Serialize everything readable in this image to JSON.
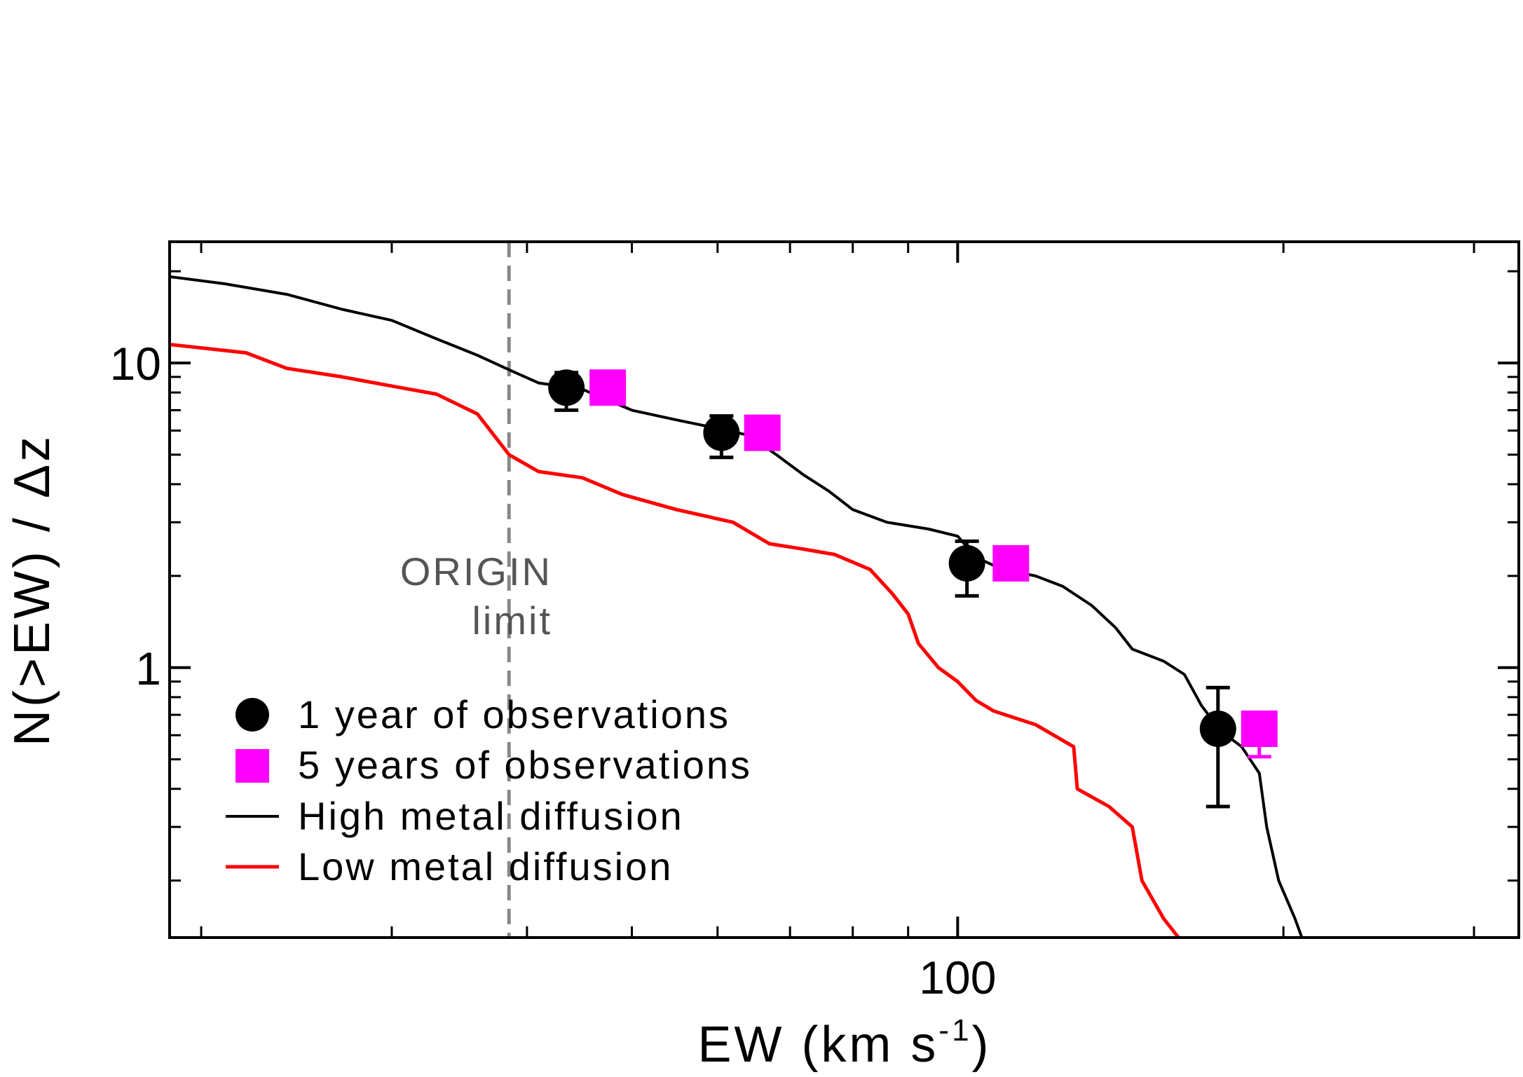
{
  "chart_data": {
    "type": "line",
    "xlabel": "EW (km s",
    "xlabel_sup": "-1",
    "xlabel_close": ")",
    "ylabel": "N(>EW) / Δz",
    "x_scale": "log",
    "y_scale": "log",
    "xlim": [
      18.7,
      330
    ],
    "ylim": [
      0.13,
      25
    ],
    "x_ticks": [
      {
        "value": 100,
        "label": "100"
      }
    ],
    "y_ticks": [
      {
        "value": 1,
        "label": "1"
      },
      {
        "value": 10,
        "label": "10"
      }
    ],
    "grid": false,
    "legend": {
      "placement": "bottom-left",
      "entries": [
        {
          "label": "1 year of observations",
          "marker": "circle",
          "color": "#000000"
        },
        {
          "label": "5 years of observations",
          "marker": "square",
          "color": "#ff00ff"
        },
        {
          "label": "High metal diffusion",
          "marker": "line",
          "color": "#000000"
        },
        {
          "label": "Low metal diffusion",
          "marker": "line",
          "color": "#ff0000"
        }
      ]
    },
    "vline": {
      "x": 38.5,
      "color": "#888888",
      "style": "dashed",
      "label_line1": "ORIGIN",
      "label_line2": "limit"
    },
    "series": [
      {
        "name": "High metal diffusion",
        "kind": "line",
        "color": "#000000",
        "points": [
          [
            18.7,
            19.2
          ],
          [
            21,
            18.2
          ],
          [
            24,
            16.8
          ],
          [
            27,
            15.0
          ],
          [
            30,
            13.8
          ],
          [
            33,
            12.0
          ],
          [
            36,
            10.6
          ],
          [
            38.5,
            9.5
          ],
          [
            41,
            8.6
          ],
          [
            45,
            8.2
          ],
          [
            50,
            7.0
          ],
          [
            55,
            6.5
          ],
          [
            60,
            6.1
          ],
          [
            64,
            5.8
          ],
          [
            68,
            5.0
          ],
          [
            72,
            4.3
          ],
          [
            76,
            3.8
          ],
          [
            80,
            3.3
          ],
          [
            86,
            3.0
          ],
          [
            94,
            2.85
          ],
          [
            100,
            2.7
          ],
          [
            104,
            2.3
          ],
          [
            110,
            2.1
          ],
          [
            118,
            2.0
          ],
          [
            125,
            1.85
          ],
          [
            133,
            1.6
          ],
          [
            140,
            1.35
          ],
          [
            145,
            1.15
          ],
          [
            155,
            1.05
          ],
          [
            162,
            0.95
          ],
          [
            168,
            0.75
          ],
          [
            175,
            0.62
          ],
          [
            183,
            0.55
          ],
          [
            190,
            0.45
          ],
          [
            193,
            0.3
          ],
          [
            198,
            0.2
          ],
          [
            205,
            0.15
          ],
          [
            208,
            0.13
          ]
        ]
      },
      {
        "name": "Low metal diffusion",
        "kind": "line",
        "color": "#ff0000",
        "points": [
          [
            18.7,
            11.5
          ],
          [
            22,
            10.8
          ],
          [
            24,
            9.6
          ],
          [
            27,
            9.0
          ],
          [
            30,
            8.4
          ],
          [
            33,
            7.9
          ],
          [
            36,
            6.8
          ],
          [
            38.5,
            5.0
          ],
          [
            41,
            4.4
          ],
          [
            45,
            4.2
          ],
          [
            49,
            3.7
          ],
          [
            55,
            3.3
          ],
          [
            62,
            3.0
          ],
          [
            67,
            2.55
          ],
          [
            72,
            2.45
          ],
          [
            77,
            2.35
          ],
          [
            83,
            2.1
          ],
          [
            87,
            1.75
          ],
          [
            90,
            1.5
          ],
          [
            92,
            1.2
          ],
          [
            96,
            1.0
          ],
          [
            100,
            0.9
          ],
          [
            104,
            0.78
          ],
          [
            108,
            0.72
          ],
          [
            118,
            0.65
          ],
          [
            128,
            0.55
          ],
          [
            129,
            0.4
          ],
          [
            138,
            0.35
          ],
          [
            145,
            0.3
          ],
          [
            148,
            0.2
          ],
          [
            155,
            0.15
          ],
          [
            160,
            0.13
          ]
        ]
      },
      {
        "name": "1 year of observations",
        "kind": "points",
        "marker": "circle",
        "color": "#000000",
        "points": [
          {
            "x": 43.5,
            "y": 8.3,
            "err_low": 1.3,
            "err_high": 1.0
          },
          {
            "x": 60.5,
            "y": 5.9,
            "err_low": 1.0,
            "err_high": 0.8
          },
          {
            "x": 102,
            "y": 2.2,
            "err_low": 0.48,
            "err_high": 0.4
          },
          {
            "x": 174,
            "y": 0.63,
            "err_low": 0.28,
            "err_high": 0.23
          }
        ]
      },
      {
        "name": "5 years of observations",
        "kind": "points",
        "marker": "square",
        "color": "#ff00ff",
        "points": [
          {
            "x": 47.5,
            "y": 8.3,
            "err_low": 0,
            "err_high": 0
          },
          {
            "x": 66,
            "y": 5.9,
            "err_low": 0,
            "err_high": 0
          },
          {
            "x": 112,
            "y": 2.2,
            "err_low": 0,
            "err_high": 0
          },
          {
            "x": 190,
            "y": 0.63,
            "err_low": 0.12,
            "err_high": 0
          }
        ]
      }
    ]
  }
}
